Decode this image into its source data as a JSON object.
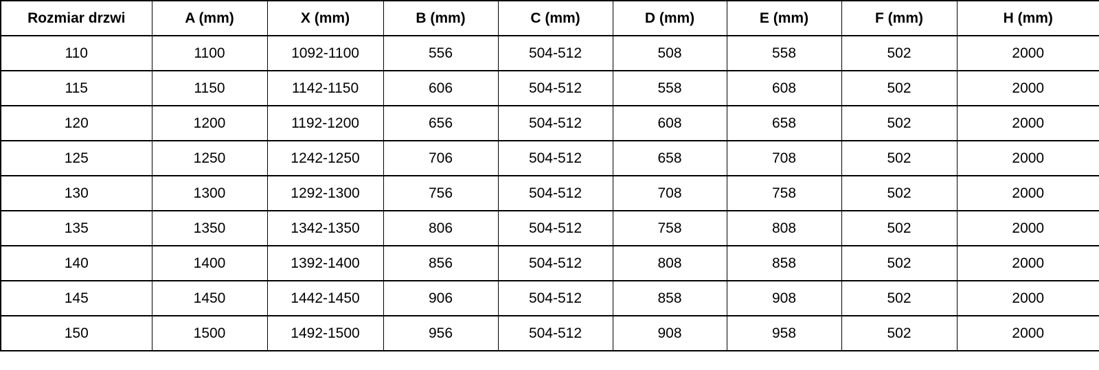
{
  "colors": {
    "background": "#ffffff",
    "border": "#000000",
    "text": "#000000"
  },
  "chart_data": {
    "type": "table",
    "title": "",
    "columns": [
      "Rozmiar drzwi",
      "A (mm)",
      "X (mm)",
      "B (mm)",
      "C (mm)",
      "D (mm)",
      "E (mm)",
      "F (mm)",
      "H (mm)"
    ],
    "rows": [
      [
        "110",
        "1100",
        "1092-1100",
        "556",
        "504-512",
        "508",
        "558",
        "502",
        "2000"
      ],
      [
        "115",
        "1150",
        "1142-1150",
        "606",
        "504-512",
        "558",
        "608",
        "502",
        "2000"
      ],
      [
        "120",
        "1200",
        "1192-1200",
        "656",
        "504-512",
        "608",
        "658",
        "502",
        "2000"
      ],
      [
        "125",
        "1250",
        "1242-1250",
        "706",
        "504-512",
        "658",
        "708",
        "502",
        "2000"
      ],
      [
        "130",
        "1300",
        "1292-1300",
        "756",
        "504-512",
        "708",
        "758",
        "502",
        "2000"
      ],
      [
        "135",
        "1350",
        "1342-1350",
        "806",
        "504-512",
        "758",
        "808",
        "502",
        "2000"
      ],
      [
        "140",
        "1400",
        "1392-1400",
        "856",
        "504-512",
        "808",
        "858",
        "502",
        "2000"
      ],
      [
        "145",
        "1450",
        "1442-1450",
        "906",
        "504-512",
        "858",
        "908",
        "502",
        "2000"
      ],
      [
        "150",
        "1500",
        "1492-1500",
        "956",
        "504-512",
        "908",
        "958",
        "502",
        "2000"
      ]
    ]
  }
}
